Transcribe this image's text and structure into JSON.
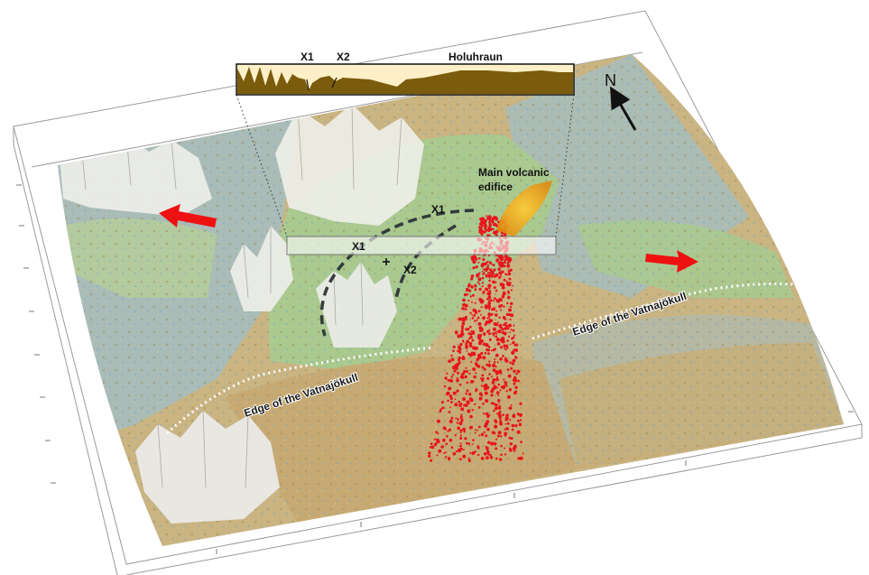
{
  "labels": {
    "profile_title": "Holuhraun",
    "profile_x1": "X1",
    "profile_x2": "X2",
    "north": "N",
    "volcano_line1": "Main volcanic",
    "volcano_line2": "edifice",
    "fissure_x1_top": "X1",
    "fissure_x1_strip": "X1",
    "fissure_x2": "X2",
    "glacier_edge_left": "Edge of the Vatnajökull",
    "glacier_edge_right": "Edge of the Vatnajökull"
  },
  "colors": {
    "lowland_green": "#a9c98f",
    "ice_blue": "#8ec3e6",
    "terrain_tan": "#c9b482",
    "mountain_white": "#eeeeea",
    "seismic_red": "#e8141b",
    "extension_arrow": "#ee1111",
    "volcano_orange": "#f0a020",
    "profile_fill": "#7a5c0c",
    "profile_sky": "#fdf0c8"
  },
  "icons": [
    "north-arrow-icon",
    "extension-arrow-icon",
    "cross-marker-icon"
  ]
}
